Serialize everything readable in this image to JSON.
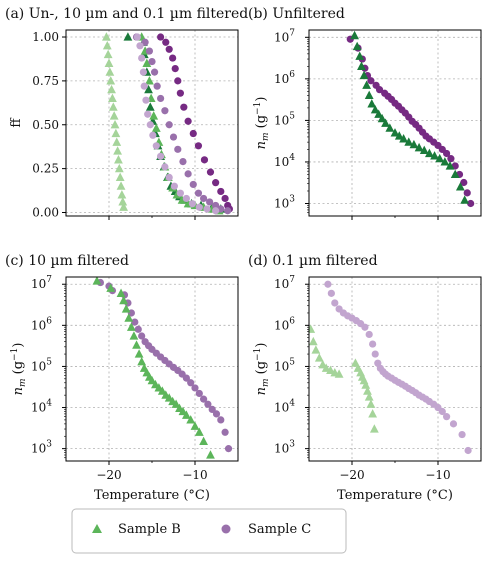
{
  "colors": {
    "sampleB_dark": "#1a7a3a",
    "sampleB_light": "#a5d49a",
    "sampleB_mid": "#5cb55a",
    "sampleC_dark": "#762a83",
    "sampleC_light": "#c2a5cf",
    "sampleC_mid": "#9970ab"
  },
  "legend": [
    {
      "name": "Sample B",
      "marker": "triangle",
      "color": "#5cb55a"
    },
    {
      "name": "Sample C",
      "marker": "circle",
      "color": "#9970ab"
    }
  ],
  "chart_data": [
    {
      "type": "scatter",
      "title": "(a) Un-, 10 µm and 0.1 µm filtered",
      "xlabel": "",
      "ylabel": "ff",
      "xlim": [
        -25,
        -5
      ],
      "ylim": [
        -0.02,
        1.04
      ],
      "yscale": "linear",
      "xticks": [
        -20,
        -10
      ],
      "xticklabels": [
        "",
        ""
      ],
      "yticks": [
        0.0,
        0.25,
        0.5,
        0.75,
        1.0
      ],
      "yticklabels": [
        "0.00",
        "0.25",
        "0.50",
        "0.75",
        "1.00"
      ],
      "grid": true,
      "series": [
        {
          "sample": "B",
          "filter": "0.1 µm",
          "marker": "triangle",
          "color": "#a5d49a",
          "x": [
            -20.3,
            -20.2,
            -20.1,
            -20.0,
            -19.9,
            -19.8,
            -19.7,
            -19.6,
            -19.5,
            -19.4,
            -19.3,
            -19.2,
            -19.1,
            -19.0,
            -18.9,
            -18.8,
            -18.7,
            -18.6,
            -18.5,
            -18.4,
            -18.3
          ],
          "y": [
            1.0,
            0.95,
            0.9,
            0.85,
            0.8,
            0.75,
            0.7,
            0.65,
            0.6,
            0.55,
            0.5,
            0.45,
            0.4,
            0.35,
            0.3,
            0.25,
            0.2,
            0.15,
            0.1,
            0.06,
            0.03
          ]
        },
        {
          "sample": "B",
          "filter": "unfiltered",
          "marker": "triangle",
          "color": "#1a7a3a",
          "x": [
            -17.8,
            -16.0,
            -15.9,
            -15.6,
            -15.4,
            -15.2,
            -14.9,
            -14.6,
            -14.3,
            -14.0,
            -13.6,
            -13.2,
            -12.8,
            -12.3,
            -11.8,
            -11.2,
            -10.4,
            -9.3,
            -8.0,
            -7.0
          ],
          "y": [
            1.0,
            0.97,
            0.9,
            0.8,
            0.7,
            0.6,
            0.52,
            0.45,
            0.38,
            0.32,
            0.26,
            0.2,
            0.15,
            0.12,
            0.09,
            0.07,
            0.05,
            0.04,
            0.03,
            0.02
          ]
        },
        {
          "sample": "B",
          "filter": "10 µm",
          "marker": "triangle",
          "color": "#5cb55a",
          "x": [
            -16.2,
            -15.8,
            -15.6,
            -15.3,
            -15.1,
            -14.8,
            -14.5,
            -14.2,
            -13.9,
            -13.5,
            -13.1,
            -12.6,
            -12.1,
            -11.5,
            -10.8,
            -10.0,
            -9.0,
            -8.0,
            -7.2
          ],
          "y": [
            1.0,
            0.92,
            0.85,
            0.75,
            0.65,
            0.55,
            0.48,
            0.4,
            0.33,
            0.26,
            0.2,
            0.14,
            0.1,
            0.07,
            0.05,
            0.04,
            0.03,
            0.02,
            0.01
          ]
        },
        {
          "sample": "C",
          "filter": "unfiltered",
          "marker": "circle",
          "color": "#762a83",
          "x": [
            -14.0,
            -13.4,
            -13.0,
            -12.6,
            -12.3,
            -12.0,
            -11.7,
            -11.3,
            -10.8,
            -10.2,
            -9.6,
            -8.9,
            -8.2,
            -7.6,
            -7.0,
            -6.5,
            -6.2,
            -6.0
          ],
          "y": [
            1.0,
            0.97,
            0.93,
            0.88,
            0.82,
            0.75,
            0.68,
            0.6,
            0.52,
            0.45,
            0.38,
            0.3,
            0.23,
            0.17,
            0.12,
            0.08,
            0.04,
            0.02
          ]
        },
        {
          "sample": "C",
          "filter": "10 µm",
          "marker": "circle",
          "color": "#9970ab",
          "x": [
            -16.8,
            -15.8,
            -15.3,
            -15.0,
            -14.7,
            -14.4,
            -14.0,
            -13.5,
            -13.0,
            -12.5,
            -12.0,
            -11.4,
            -10.8,
            -10.2,
            -9.6,
            -9.0,
            -8.3,
            -7.6,
            -7.0,
            -6.2
          ],
          "y": [
            1.0,
            0.97,
            0.92,
            0.86,
            0.8,
            0.72,
            0.65,
            0.58,
            0.5,
            0.43,
            0.36,
            0.29,
            0.22,
            0.16,
            0.11,
            0.08,
            0.06,
            0.04,
            0.02,
            0.01
          ]
        },
        {
          "sample": "C",
          "filter": "0.1 µm",
          "marker": "circle",
          "color": "#c2a5cf",
          "x": [
            -16.7,
            -16.4,
            -16.2,
            -16.0,
            -15.9,
            -15.7,
            -15.5,
            -15.2,
            -14.9,
            -14.5,
            -14.0,
            -13.5,
            -13.0,
            -12.4,
            -11.7,
            -11.0,
            -10.3,
            -9.5,
            -8.6,
            -7.6
          ],
          "y": [
            1.0,
            0.95,
            0.88,
            0.8,
            0.72,
            0.64,
            0.56,
            0.5,
            0.44,
            0.38,
            0.32,
            0.26,
            0.2,
            0.15,
            0.11,
            0.08,
            0.05,
            0.03,
            0.02,
            0.01
          ]
        }
      ]
    },
    {
      "type": "scatter",
      "title": "(b) Unfiltered",
      "xlabel": "",
      "ylabel": "n_m (g^-1)",
      "xlim": [
        -25,
        -5
      ],
      "ylim": [
        500,
        15000000
      ],
      "yscale": "log",
      "xticks": [
        -20,
        -10
      ],
      "xticklabels": [
        "",
        ""
      ],
      "yticks": [
        1000,
        10000,
        100000,
        1000000,
        10000000
      ],
      "yticklabels": [
        "10",
        "10",
        "10",
        "10",
        "10"
      ],
      "yticksup": [
        "3",
        "4",
        "5",
        "6",
        "7"
      ],
      "grid": true,
      "series": [
        {
          "sample": "C",
          "filter": "unfiltered",
          "marker": "circle",
          "color": "#762a83",
          "x": [
            -20.2,
            -19.3,
            -18.8,
            -18.5,
            -18.2,
            -17.8,
            -17.2,
            -16.8,
            -16.2,
            -15.8,
            -15.4,
            -15.0,
            -14.6,
            -14.2,
            -13.8,
            -13.4,
            -13.0,
            -12.6,
            -12.2,
            -11.8,
            -11.4,
            -11.0,
            -10.5,
            -10.0,
            -9.5,
            -9.0,
            -8.5,
            -8.0,
            -7.5,
            -7.0,
            -6.6,
            -6.2
          ],
          "y": [
            9000000,
            5500000,
            3000000,
            1800000,
            1200000,
            900000,
            700000,
            550000,
            450000,
            380000,
            320000,
            260000,
            220000,
            180000,
            150000,
            120000,
            95000,
            80000,
            65000,
            52000,
            42000,
            36000,
            30000,
            25000,
            20000,
            16000,
            12000,
            8000,
            5000,
            3200,
            1800,
            1000
          ]
        },
        {
          "sample": "B",
          "filter": "unfiltered",
          "marker": "triangle",
          "color": "#1a7a3a",
          "x": [
            -19.7,
            -19.4,
            -19.1,
            -18.9,
            -18.6,
            -18.3,
            -18.0,
            -17.7,
            -17.3,
            -16.9,
            -16.5,
            -16.1,
            -15.6,
            -15.0,
            -14.5,
            -14.0,
            -13.4,
            -12.8,
            -12.2,
            -11.6,
            -11.0,
            -10.4,
            -9.8,
            -9.2,
            -8.6,
            -8.0,
            -7.4,
            -6.9
          ],
          "y": [
            11000000,
            6000000,
            3500000,
            2000000,
            1200000,
            700000,
            400000,
            250000,
            180000,
            140000,
            110000,
            85000,
            65000,
            50000,
            42000,
            36000,
            30000,
            26000,
            22000,
            19000,
            16000,
            14000,
            12000,
            10000,
            8000,
            5000,
            2500,
            1200
          ]
        }
      ]
    },
    {
      "type": "scatter",
      "title": "(c) 10 µm filtered",
      "xlabel": "Temperature (°C)",
      "ylabel": "n_m (g^-1)",
      "xlim": [
        -25,
        -5
      ],
      "ylim": [
        500,
        15000000
      ],
      "yscale": "log",
      "xticks": [
        -20,
        -10
      ],
      "xticklabels": [
        "−20",
        "−10"
      ],
      "yticks": [
        1000,
        10000,
        100000,
        1000000,
        10000000
      ],
      "yticklabels": [
        "10",
        "10",
        "10",
        "10",
        "10"
      ],
      "yticksup": [
        "3",
        "4",
        "5",
        "6",
        "7"
      ],
      "grid": true,
      "series": [
        {
          "sample": "C",
          "filter": "10 µm",
          "marker": "circle",
          "color": "#9970ab",
          "x": [
            -21.0,
            -20.0,
            -19.6,
            -18.2,
            -17.8,
            -17.4,
            -17.0,
            -16.6,
            -16.2,
            -15.8,
            -15.4,
            -15.0,
            -14.5,
            -14.0,
            -13.5,
            -13.0,
            -12.5,
            -12.0,
            -11.5,
            -11.0,
            -10.5,
            -10.0,
            -9.5,
            -9.0,
            -8.5,
            -8.0,
            -7.5,
            -7.0,
            -6.5,
            -6.1
          ],
          "y": [
            11000000,
            9000000,
            7000000,
            5500000,
            3500000,
            2000000,
            1200000,
            800000,
            550000,
            400000,
            320000,
            260000,
            210000,
            170000,
            140000,
            115000,
            95000,
            80000,
            65000,
            52000,
            40000,
            30000,
            22000,
            16000,
            12000,
            9000,
            7000,
            5000,
            2500,
            1000
          ]
        },
        {
          "sample": "B",
          "filter": "10 µm",
          "marker": "triangle",
          "color": "#5cb55a",
          "x": [
            -21.4,
            -19.8,
            -18.6,
            -18.3,
            -18.0,
            -17.7,
            -17.4,
            -17.1,
            -16.8,
            -16.5,
            -16.2,
            -15.9,
            -15.6,
            -15.3,
            -15.0,
            -14.6,
            -14.2,
            -13.8,
            -13.4,
            -13.0,
            -12.6,
            -12.2,
            -11.8,
            -11.4,
            -11.0,
            -10.5,
            -10.0,
            -9.5,
            -9.0,
            -8.2
          ],
          "y": [
            12000000,
            8000000,
            6000000,
            4000000,
            2500000,
            1500000,
            900000,
            550000,
            330000,
            200000,
            130000,
            90000,
            70000,
            55000,
            45000,
            36000,
            30000,
            25000,
            20000,
            17000,
            14000,
            12000,
            9500,
            8000,
            6500,
            5000,
            3500,
            2500,
            1500,
            700
          ]
        }
      ]
    },
    {
      "type": "scatter",
      "title": "(d) 0.1 µm filtered",
      "xlabel": "Temperature (°C)",
      "ylabel": "n_m (g^-1)",
      "xlim": [
        -25,
        -5
      ],
      "ylim": [
        500,
        15000000
      ],
      "yscale": "log",
      "xticks": [
        -20,
        -10
      ],
      "xticklabels": [
        "−20",
        "−10"
      ],
      "yticks": [
        1000,
        10000,
        100000,
        1000000,
        10000000
      ],
      "yticklabels": [
        "10",
        "10",
        "10",
        "10",
        "10"
      ],
      "yticksup": [
        "3",
        "4",
        "5",
        "6",
        "7"
      ],
      "grid": true,
      "series": [
        {
          "sample": "C",
          "filter": "0.1 µm",
          "marker": "circle",
          "color": "#c2a5cf",
          "x": [
            -22.8,
            -22.4,
            -22.0,
            -21.5,
            -21.0,
            -20.5,
            -20.0,
            -19.5,
            -19.0,
            -18.5,
            -18.0,
            -17.6,
            -17.3,
            -17.0,
            -16.7,
            -16.4,
            -16.1,
            -15.8,
            -15.4,
            -15.0,
            -14.6,
            -14.2,
            -13.8,
            -13.4,
            -13.0,
            -12.6,
            -12.2,
            -11.8,
            -11.4,
            -11.0,
            -10.5,
            -10.0,
            -9.5,
            -9.0,
            -8.2,
            -7.2,
            -6.5
          ],
          "y": [
            10000000,
            6000000,
            3500000,
            2500000,
            2000000,
            1700000,
            1500000,
            1300000,
            1100000,
            900000,
            600000,
            350000,
            200000,
            120000,
            90000,
            75000,
            65000,
            58000,
            52000,
            46000,
            41000,
            37000,
            33000,
            29000,
            26000,
            23000,
            20000,
            18000,
            16000,
            14000,
            12000,
            10000,
            8000,
            6000,
            4000,
            2200,
            900
          ]
        },
        {
          "sample": "B",
          "filter": "0.1 µm",
          "marker": "triangle",
          "color": "#a5d49a",
          "x": [
            -24.8,
            -24.5,
            -24.2,
            -23.8,
            -23.4,
            -23.0,
            -22.5,
            -22.0,
            -21.5,
            -19.6,
            -19.3,
            -19.0,
            -18.8,
            -18.6,
            -18.4,
            -18.2,
            -18.0,
            -17.8,
            -17.6,
            -17.4
          ],
          "y": [
            800000,
            400000,
            250000,
            160000,
            110000,
            90000,
            80000,
            70000,
            65000,
            120000,
            90000,
            70000,
            55000,
            45000,
            35000,
            25000,
            18000,
            12000,
            7000,
            3000
          ]
        }
      ]
    }
  ]
}
